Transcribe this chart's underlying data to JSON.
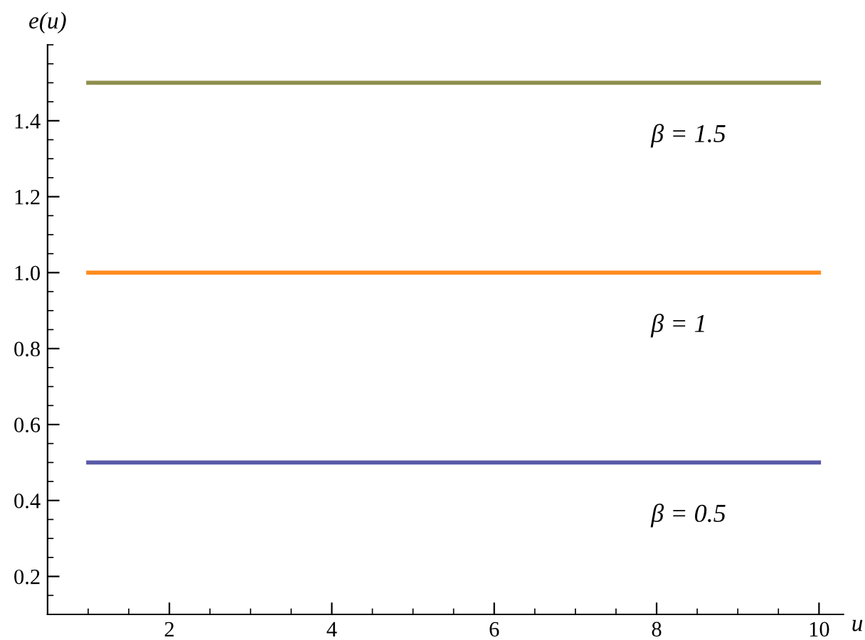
{
  "chart_data": {
    "type": "line",
    "xlabel": "u",
    "ylabel": "e(u)",
    "x": [
      1,
      10
    ],
    "series": [
      {
        "name": "β = 0.5",
        "color": "#5a5aa8",
        "values": [
          0.5,
          0.5
        ]
      },
      {
        "name": "β = 1",
        "color": "#ff8c1e",
        "values": [
          1,
          1
        ]
      },
      {
        "name": "β = 1.5",
        "color": "#8f8f4f",
        "values": [
          1.5,
          1.5
        ]
      }
    ],
    "xlim": [
      0.5,
      10.3
    ],
    "ylim": [
      0.1,
      1.6
    ],
    "xticks": [
      2,
      4,
      6,
      8,
      10
    ],
    "yticks": [
      0.2,
      0.4,
      0.6,
      0.8,
      {
        "value": 1,
        "label": "1.0"
      },
      1.2,
      1.4
    ],
    "grid": false,
    "legend": false,
    "marker": "none",
    "line_style": "solid"
  }
}
